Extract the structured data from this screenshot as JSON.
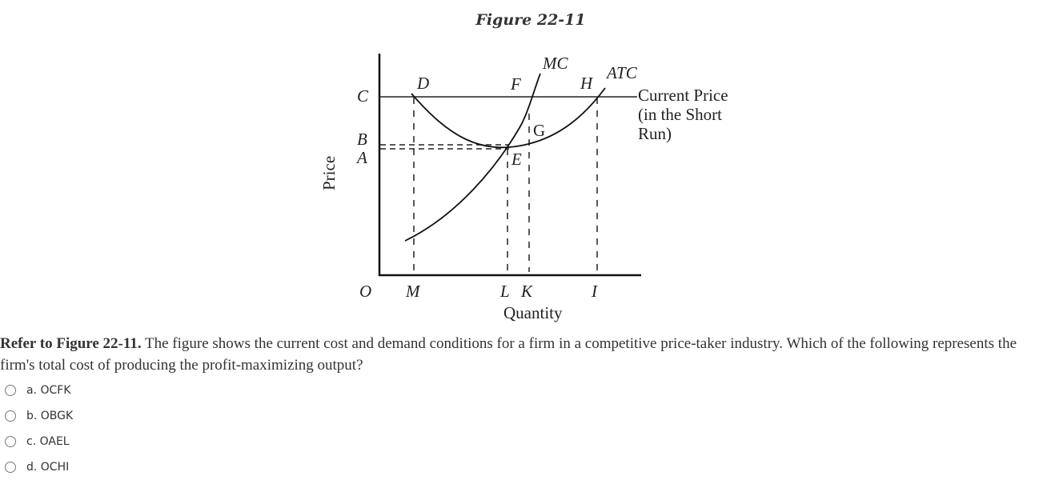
{
  "figure": {
    "title": "Figure 22-11",
    "y_axis_label": "Price",
    "x_axis_label": "Quantity",
    "origin_label": "O",
    "curve_labels": {
      "mc": "MC",
      "atc": "ATC"
    },
    "price_labels": {
      "c": "C",
      "b": "B",
      "a": "A"
    },
    "quantity_labels": {
      "m": "M",
      "l": "L",
      "k": "K",
      "i": "I"
    },
    "point_labels": {
      "d": "D",
      "f": "F",
      "h": "H",
      "g": "G",
      "e": "E"
    },
    "price_line_label": [
      "Current Price",
      "(in the Short",
      "Run)"
    ]
  },
  "question": {
    "reference": "Refer to Figure 22-11.",
    "text": " The figure shows the current cost and demand conditions for a firm in a competitive price-taker industry.  Which of the following represents the firm's total cost of producing the profit-maximizing output?"
  },
  "options": [
    {
      "label": "a. OCFK"
    },
    {
      "label": "b. OBGK"
    },
    {
      "label": "c. OAEL"
    },
    {
      "label": "d. OCHI"
    }
  ]
}
